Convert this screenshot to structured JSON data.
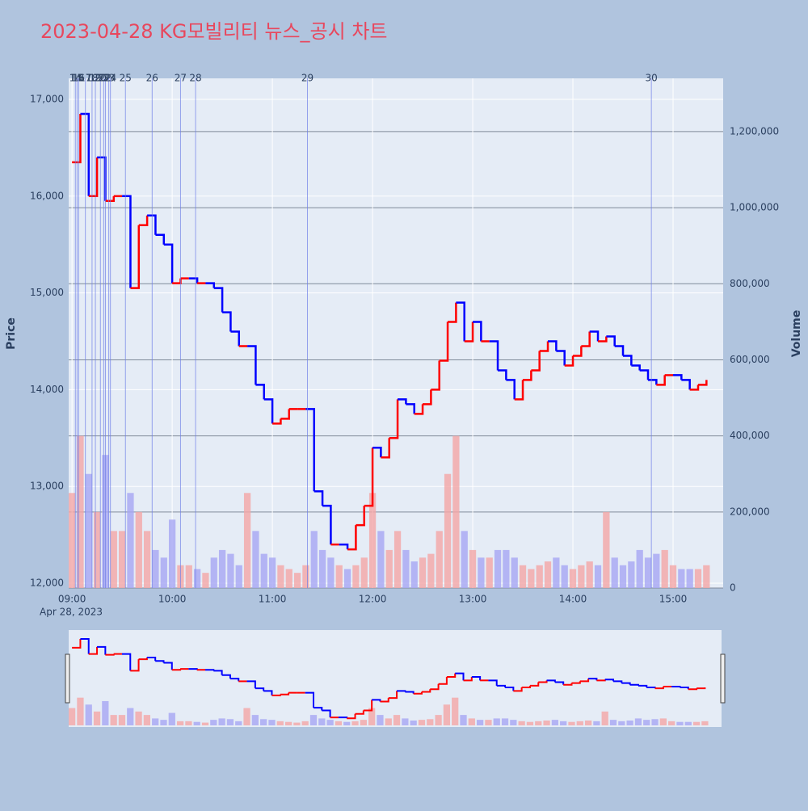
{
  "chart_data": {
    "type": "candlestick",
    "title": "2023-04-28 KG모빌리티 뉴스_공시 차트",
    "x_sublabel": "Apr 28, 2023",
    "y_title": "Price",
    "y2_title": "Volume",
    "x": [
      "09:00",
      "09:05",
      "09:10",
      "09:15",
      "09:20",
      "09:25",
      "09:30",
      "09:35",
      "09:40",
      "09:45",
      "09:50",
      "09:55",
      "10:00",
      "10:05",
      "10:10",
      "10:15",
      "10:20",
      "10:25",
      "10:30",
      "10:35",
      "10:40",
      "10:45",
      "10:50",
      "10:55",
      "11:00",
      "11:05",
      "11:10",
      "11:15",
      "11:20",
      "11:25",
      "11:30",
      "11:35",
      "11:40",
      "11:45",
      "11:50",
      "11:55",
      "12:00",
      "12:05",
      "12:10",
      "12:15",
      "12:20",
      "12:25",
      "12:30",
      "12:35",
      "12:40",
      "12:45",
      "12:50",
      "12:55",
      "13:00",
      "13:05",
      "13:10",
      "13:15",
      "13:20",
      "13:25",
      "13:30",
      "13:35",
      "13:40",
      "13:45",
      "13:50",
      "13:55",
      "14:00",
      "14:05",
      "14:10",
      "14:15",
      "14:20",
      "14:25",
      "14:30",
      "14:35",
      "14:40",
      "14:45",
      "14:50",
      "14:55",
      "15:00",
      "15:05",
      "15:10",
      "15:15",
      "15:20"
    ],
    "price": {
      "up_color": "#ff0000",
      "down_color": "#0000ff",
      "values": [
        16350,
        16850,
        16000,
        16400,
        15950,
        16000,
        16000,
        15050,
        15700,
        15800,
        15600,
        15500,
        15100,
        15150,
        15150,
        15100,
        15100,
        15050,
        14800,
        14600,
        14450,
        14450,
        14050,
        13900,
        13650,
        13700,
        13800,
        13800,
        13800,
        12950,
        12800,
        12400,
        12400,
        12350,
        12600,
        12800,
        13400,
        13300,
        13500,
        13900,
        13850,
        13750,
        13850,
        14000,
        14300,
        14700,
        14900,
        14500,
        14700,
        14500,
        14500,
        14200,
        14100,
        13900,
        14100,
        14200,
        14400,
        14500,
        14400,
        14250,
        14350,
        14450,
        14600,
        14500,
        14550,
        14450,
        14350,
        14250,
        14200,
        14100,
        14050,
        14150,
        14150,
        14100,
        14000,
        14050,
        14100
      ]
    },
    "volume": {
      "axis": "y2",
      "up_color": "#f4a6a6",
      "down_color": "#a6a6f4",
      "values": [
        250000,
        400000,
        300000,
        200000,
        350000,
        150000,
        150000,
        250000,
        200000,
        150000,
        100000,
        80000,
        180000,
        60000,
        60000,
        50000,
        40000,
        80000,
        100000,
        90000,
        60000,
        250000,
        150000,
        90000,
        80000,
        60000,
        50000,
        40000,
        60000,
        150000,
        100000,
        80000,
        60000,
        50000,
        60000,
        80000,
        250000,
        150000,
        100000,
        150000,
        100000,
        70000,
        80000,
        90000,
        150000,
        300000,
        400000,
        150000,
        100000,
        80000,
        80000,
        100000,
        100000,
        80000,
        60000,
        50000,
        60000,
        70000,
        80000,
        60000,
        50000,
        60000,
        70000,
        60000,
        200000,
        80000,
        60000,
        70000,
        100000,
        80000,
        90000,
        100000,
        60000,
        50000,
        50000,
        50000,
        60000
      ]
    },
    "news": {
      "color": "#6f7fe8",
      "x": [
        "09:02",
        "09:03",
        "09:04",
        "09:08",
        "09:12",
        "09:14",
        "09:17",
        "09:19",
        "09:20",
        "09:22",
        "09:23",
        "09:32",
        "09:48",
        "10:05",
        "10:14",
        "11:21",
        "14:47"
      ],
      "labels": [
        "14",
        "15",
        "16",
        "17",
        "18",
        "19",
        "20",
        "21",
        "22",
        "23",
        "24",
        "25",
        "26",
        "27",
        "28",
        "29",
        "30"
      ]
    },
    "xlim": [
      "08:58",
      "15:30"
    ],
    "xticks": [
      "09:00",
      "10:00",
      "11:00",
      "12:00",
      "13:00",
      "14:00",
      "15:00"
    ],
    "ylim": [
      11950,
      17217
    ],
    "yticks": [
      {
        "value": 12000,
        "label": "12,000"
      },
      {
        "value": 13000,
        "label": "13,000"
      },
      {
        "value": 14000,
        "label": "14,000"
      },
      {
        "value": 15000,
        "label": "15,000"
      },
      {
        "value": 16000,
        "label": "16,000"
      },
      {
        "value": 17000,
        "label": "17,000"
      }
    ],
    "y2lim": [
      0,
      1340000
    ],
    "y2ticks": [
      0,
      {
        "value": 200000,
        "label": "200,000"
      },
      {
        "value": 400000,
        "label": "400,000"
      },
      {
        "value": 600000,
        "label": "600,000"
      },
      {
        "value": 800000,
        "label": "800,000"
      },
      {
        "value": 1000000,
        "label": "1,000,000"
      },
      {
        "value": 1200000,
        "label": "1,200,000"
      }
    ],
    "grid": true
  }
}
